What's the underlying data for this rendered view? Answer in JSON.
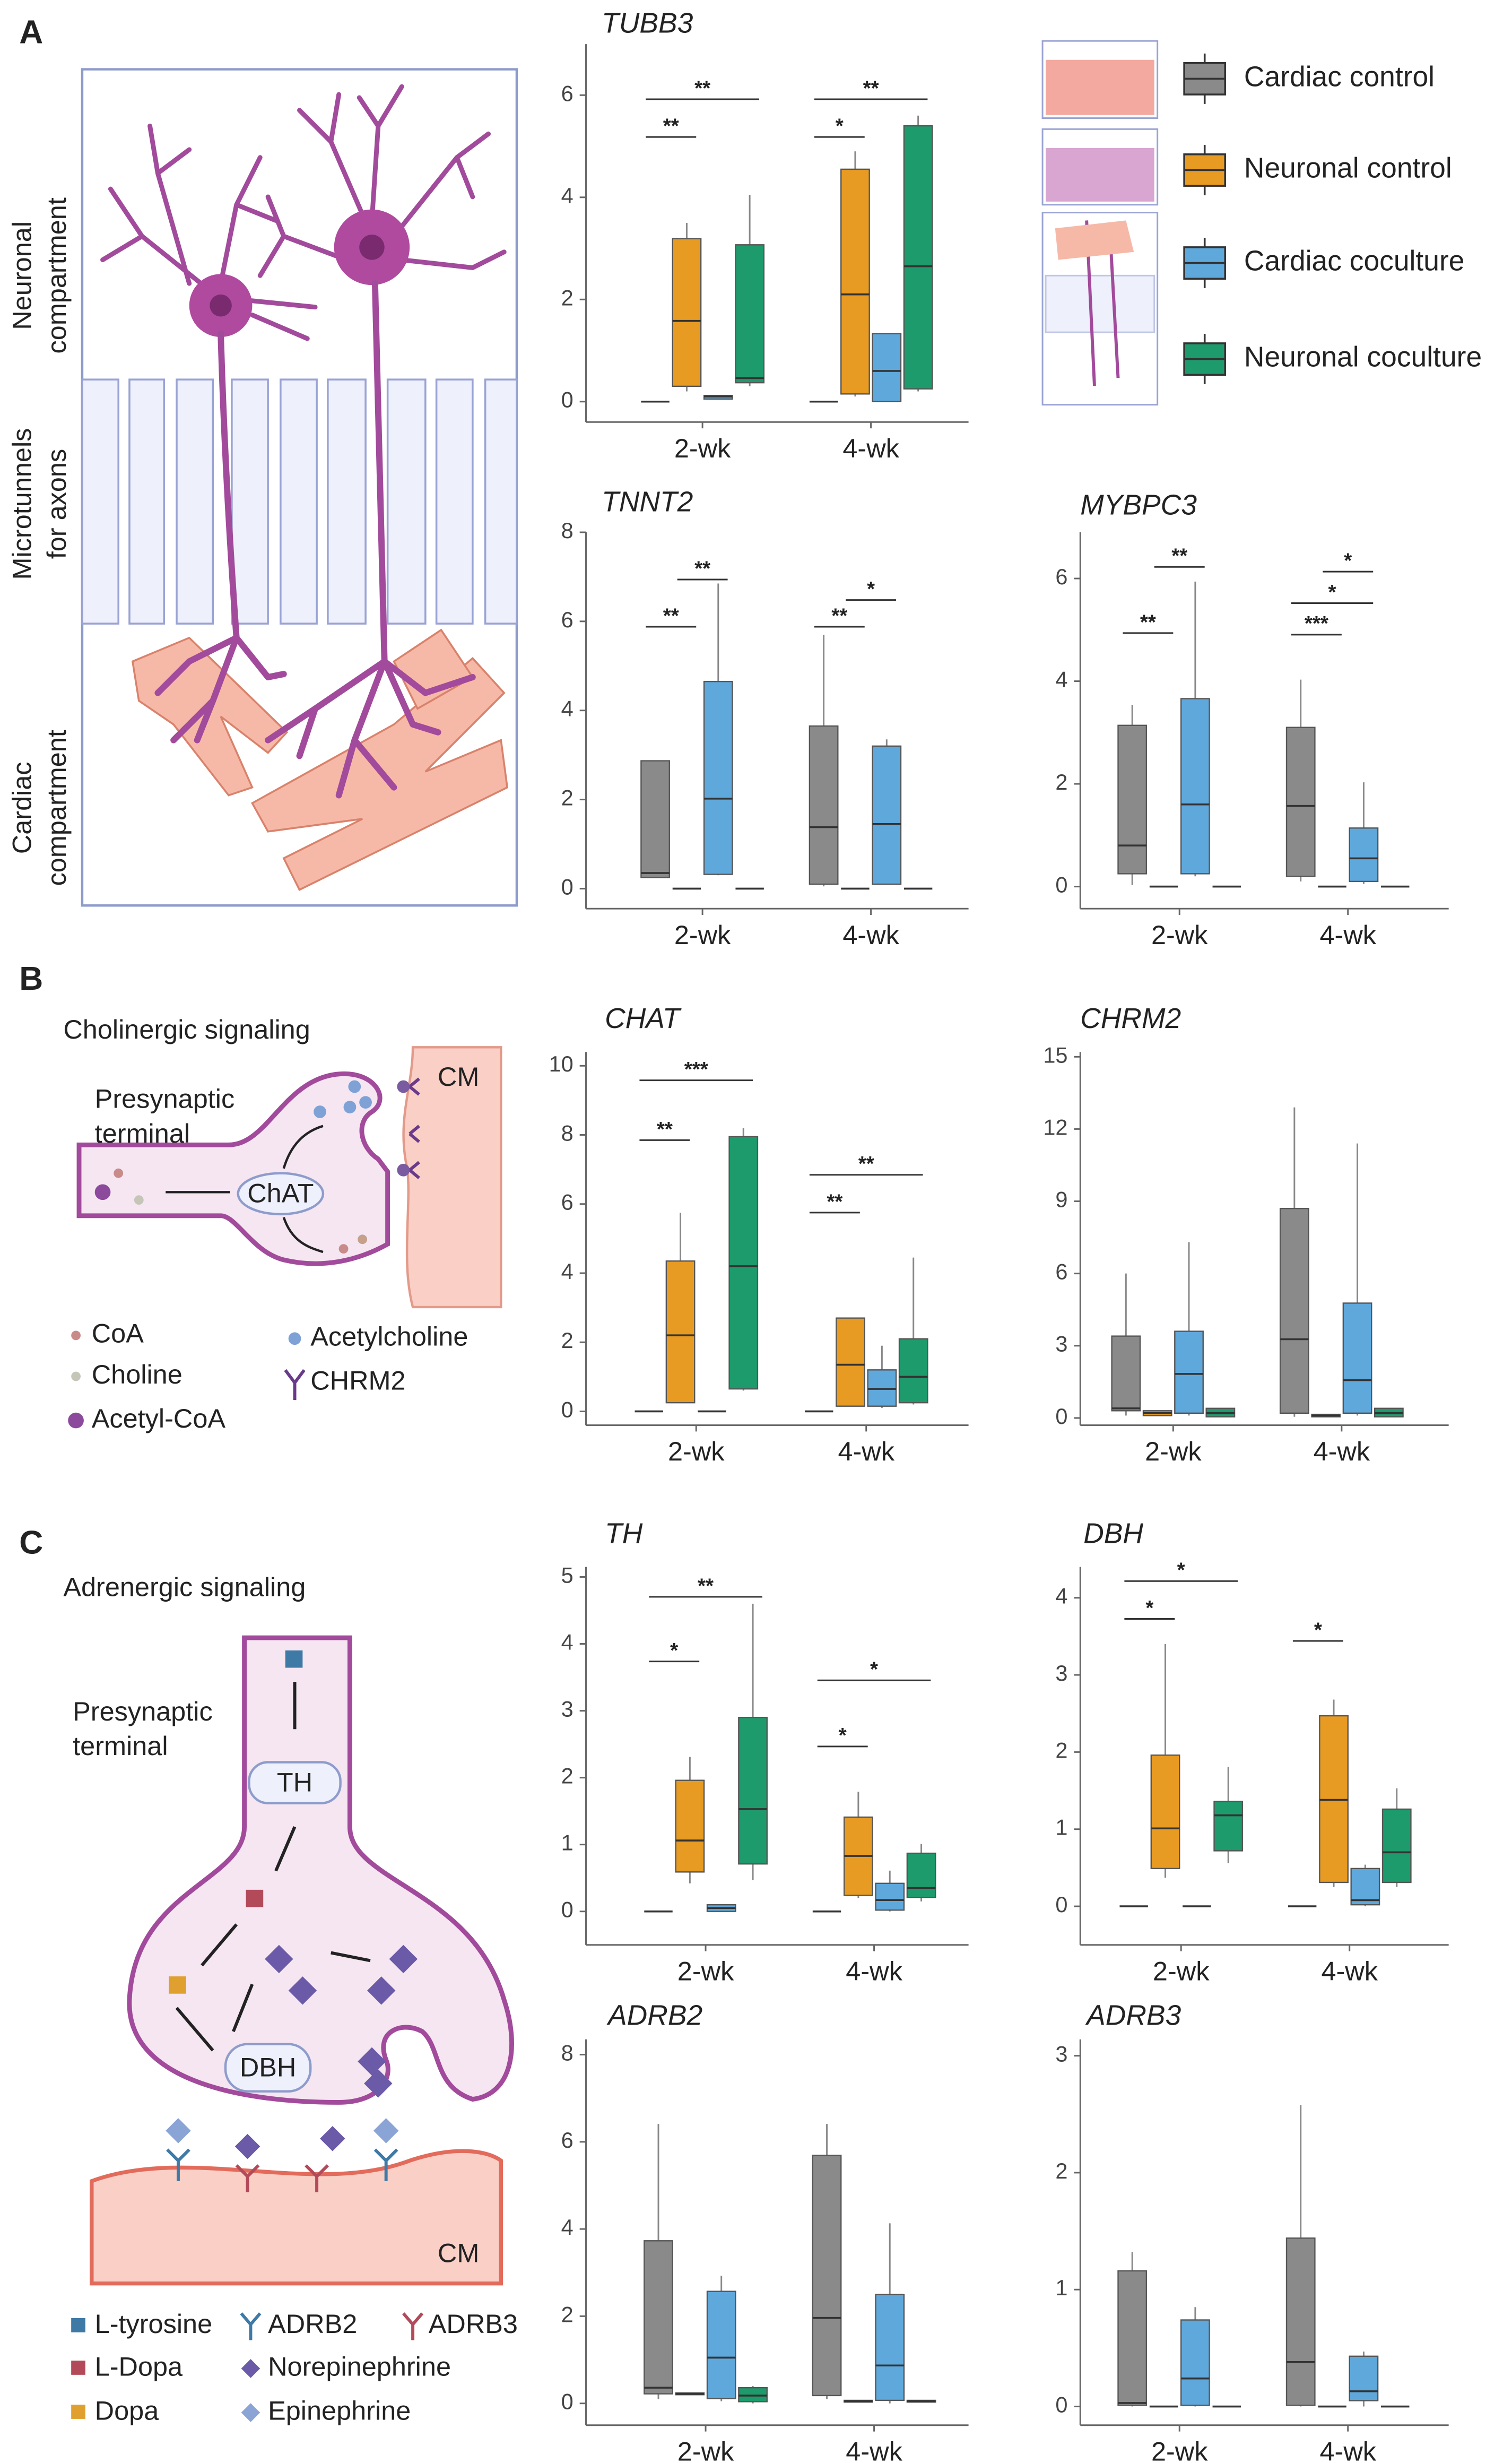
{
  "panel_labels": [
    "A",
    "B",
    "C"
  ],
  "diagram_A": {
    "labels": [
      [
        "Neuronal",
        "compartment"
      ],
      [
        "Microtunnels",
        "for axons"
      ],
      [
        "Cardiac",
        "compartment"
      ]
    ]
  },
  "diagram_B": {
    "title": "Cholinergic signaling",
    "terminal": [
      "Presynaptic",
      "terminal"
    ],
    "enzyme": "ChAT",
    "target": "CM",
    "legend": [
      "CoA",
      "Choline",
      "Acetyl-CoA",
      "Acetylcholine",
      "CHRM2"
    ]
  },
  "diagram_C": {
    "title": "Adrenergic signaling",
    "terminal": [
      "Presynaptic",
      "terminal"
    ],
    "enzymes": [
      "TH",
      "DBH"
    ],
    "target": "CM",
    "legend": [
      "L-tyrosine",
      "L-Dopa",
      "Dopa",
      "ADRB2",
      "ADRB3",
      "Norepinephrine",
      "Epinephrine"
    ]
  },
  "chart_data": [
    {
      "type": "box",
      "title": "TUBB3",
      "categories": [
        "2-wk",
        "4-wk"
      ],
      "ylim": [
        -0.4,
        7
      ],
      "yticks": [
        0,
        2,
        4,
        6
      ],
      "series": [
        {
          "name": "Cardiac control",
          "color": "#8a8a8a",
          "values": [
            {
              "min": 0,
              "q1": 0,
              "median": 0,
              "q3": 0,
              "max": 0
            },
            {
              "min": 0,
              "q1": 0,
              "median": 0,
              "q3": 0,
              "max": 0
            }
          ]
        },
        {
          "name": "Neuronal control",
          "color": "#e89b22",
          "values": [
            {
              "min": 0.2,
              "q1": 0.3,
              "median": 1.58,
              "q3": 3.19,
              "max": 3.5
            },
            {
              "min": 0.1,
              "q1": 0.15,
              "median": 2.1,
              "q3": 4.55,
              "max": 4.9
            }
          ]
        },
        {
          "name": "Cardiac coculture",
          "color": "#5fa8dc",
          "values": [
            {
              "min": 0.05,
              "q1": 0.05,
              "median": 0.1,
              "q3": 0.12,
              "max": 0.12
            },
            {
              "min": 0,
              "q1": 0,
              "median": 0.6,
              "q3": 1.33,
              "max": 1.33
            }
          ]
        },
        {
          "name": "Neuronal coculture",
          "color": "#1e9b6c",
          "values": [
            {
              "min": 0.3,
              "q1": 0.37,
              "median": 0.46,
              "q3": 3.07,
              "max": 4.05
            },
            {
              "min": 0.2,
              "q1": 0.25,
              "median": 2.65,
              "q3": 5.4,
              "max": 5.6
            }
          ]
        }
      ],
      "annotations": [
        "**",
        "**",
        "*",
        "**"
      ]
    },
    {
      "type": "box",
      "title": "TNNT2",
      "categories": [
        "2-wk",
        "4-wk"
      ],
      "ylim": [
        -0.45,
        8
      ],
      "yticks": [
        0,
        2,
        4,
        6,
        8
      ],
      "series": [
        {
          "color": "#8a8a8a",
          "values": [
            {
              "min": 0.25,
              "q1": 0.25,
              "median": 0.35,
              "q3": 2.87,
              "max": 2.87
            },
            {
              "min": 0.05,
              "q1": 0.1,
              "median": 1.38,
              "q3": 3.65,
              "max": 5.7
            }
          ]
        },
        {
          "color": "#e89b22",
          "values": [
            {
              "min": 0,
              "q1": 0,
              "median": 0,
              "q3": 0,
              "max": 0
            },
            {
              "min": 0,
              "q1": 0,
              "median": 0,
              "q3": 0,
              "max": 0
            }
          ]
        },
        {
          "color": "#5fa8dc",
          "values": [
            {
              "min": 0.3,
              "q1": 0.32,
              "median": 2.02,
              "q3": 4.65,
              "max": 6.85
            },
            {
              "min": 0.1,
              "q1": 0.1,
              "median": 1.45,
              "q3": 3.2,
              "max": 3.35
            }
          ]
        },
        {
          "color": "#1e9b6c",
          "values": [
            {
              "min": 0,
              "q1": 0,
              "median": 0,
              "q3": 0,
              "max": 0
            },
            {
              "min": 0,
              "q1": 0,
              "median": 0,
              "q3": 0,
              "max": 0
            }
          ]
        }
      ],
      "annotations": [
        "**",
        "**",
        "**",
        "*"
      ]
    },
    {
      "type": "box",
      "title": "MYBPC3",
      "categories": [
        "2-wk",
        "4-wk"
      ],
      "ylim": [
        -0.43,
        6.9
      ],
      "yticks": [
        0,
        2,
        4,
        6
      ],
      "series": [
        {
          "color": "#8a8a8a",
          "values": [
            {
              "min": 0.03,
              "q1": 0.25,
              "median": 0.8,
              "q3": 3.14,
              "max": 3.54
            },
            {
              "min": 0.1,
              "q1": 0.2,
              "median": 1.57,
              "q3": 3.1,
              "max": 4.03
            }
          ]
        },
        {
          "color": "#e89b22",
          "values": [
            {
              "min": 0,
              "q1": 0,
              "median": 0,
              "q3": 0,
              "max": 0
            },
            {
              "min": 0,
              "q1": 0,
              "median": 0,
              "q3": 0,
              "max": 0
            }
          ]
        },
        {
          "color": "#5fa8dc",
          "values": [
            {
              "min": 0.2,
              "q1": 0.25,
              "median": 1.6,
              "q3": 3.66,
              "max": 5.94
            },
            {
              "min": 0.05,
              "q1": 0.1,
              "median": 0.55,
              "q3": 1.14,
              "max": 2.03
            }
          ]
        },
        {
          "color": "#1e9b6c",
          "values": [
            {
              "min": 0,
              "q1": 0,
              "median": 0,
              "q3": 0,
              "max": 0
            },
            {
              "min": 0,
              "q1": 0,
              "median": 0,
              "q3": 0,
              "max": 0
            }
          ]
        }
      ],
      "annotations": [
        "**",
        "**",
        "***",
        "*",
        "*"
      ]
    },
    {
      "type": "box",
      "title": "CHAT",
      "categories": [
        "2-wk",
        "4-wk"
      ],
      "ylim": [
        -0.4,
        10.4
      ],
      "yticks": [
        0,
        2,
        4,
        6,
        8,
        10
      ],
      "series": [
        {
          "color": "#8a8a8a",
          "values": [
            {
              "min": 0,
              "q1": 0,
              "median": 0,
              "q3": 0,
              "max": 0
            },
            {
              "min": 0,
              "q1": 0,
              "median": 0,
              "q3": 0,
              "max": 0
            }
          ]
        },
        {
          "color": "#e89b22",
          "values": [
            {
              "min": 0.25,
              "q1": 0.25,
              "median": 2.2,
              "q3": 4.35,
              "max": 5.75
            },
            {
              "min": 0.15,
              "q1": 0.15,
              "median": 1.35,
              "q3": 2.7,
              "max": 2.7
            }
          ]
        },
        {
          "color": "#5fa8dc",
          "values": [
            {
              "min": 0,
              "q1": 0,
              "median": 0,
              "q3": 0,
              "max": 0
            },
            {
              "min": 0.1,
              "q1": 0.15,
              "median": 0.65,
              "q3": 1.2,
              "max": 1.9
            }
          ]
        },
        {
          "color": "#1e9b6c",
          "values": [
            {
              "min": 0.6,
              "q1": 0.65,
              "median": 4.2,
              "q3": 7.95,
              "max": 8.2
            },
            {
              "min": 0.2,
              "q1": 0.25,
              "median": 1.0,
              "q3": 2.1,
              "max": 4.45
            }
          ]
        }
      ],
      "annotations": [
        "**",
        "***",
        "**",
        "**"
      ]
    },
    {
      "type": "box",
      "title": "CHRM2",
      "categories": [
        "2-wk",
        "4-wk"
      ],
      "ylim": [
        -0.3,
        15.2
      ],
      "yticks": [
        0,
        3,
        6,
        9,
        12,
        15
      ],
      "series": [
        {
          "color": "#8a8a8a",
          "values": [
            {
              "min": 0.1,
              "q1": 0.3,
              "median": 0.4,
              "q3": 3.4,
              "max": 6.0
            },
            {
              "min": 0.05,
              "q1": 0.2,
              "median": 3.27,
              "q3": 8.7,
              "max": 12.9
            }
          ]
        },
        {
          "color": "#e89b22",
          "values": [
            {
              "min": 0.1,
              "q1": 0.1,
              "median": 0.2,
              "q3": 0.3,
              "max": 0.3
            },
            {
              "min": 0.05,
              "q1": 0.05,
              "median": 0.1,
              "q3": 0.15,
              "max": 0.15
            }
          ]
        },
        {
          "color": "#5fa8dc",
          "values": [
            {
              "min": 0.1,
              "q1": 0.2,
              "median": 1.83,
              "q3": 3.6,
              "max": 7.3
            },
            {
              "min": 0.1,
              "q1": 0.2,
              "median": 1.57,
              "q3": 4.77,
              "max": 11.4
            }
          ]
        },
        {
          "color": "#1e9b6c",
          "values": [
            {
              "min": 0.05,
              "q1": 0.05,
              "median": 0.2,
              "q3": 0.4,
              "max": 0.4
            },
            {
              "min": 0.05,
              "q1": 0.05,
              "median": 0.2,
              "q3": 0.4,
              "max": 0.4
            }
          ]
        }
      ]
    },
    {
      "type": "box",
      "title": "TH",
      "categories": [
        "2-wk",
        "4-wk"
      ],
      "ylim": [
        -0.5,
        5.15
      ],
      "yticks": [
        0,
        1,
        2,
        3,
        4,
        5
      ],
      "series": [
        {
          "color": "#8a8a8a",
          "values": [
            {
              "min": 0,
              "q1": 0,
              "median": 0,
              "q3": 0,
              "max": 0
            },
            {
              "min": 0,
              "q1": 0,
              "median": 0,
              "q3": 0,
              "max": 0
            }
          ]
        },
        {
          "color": "#e89b22",
          "values": [
            {
              "min": 0.42,
              "q1": 0.59,
              "median": 1.06,
              "q3": 1.96,
              "max": 2.31
            },
            {
              "min": 0.2,
              "q1": 0.24,
              "median": 0.83,
              "q3": 1.41,
              "max": 1.79
            }
          ]
        },
        {
          "color": "#5fa8dc",
          "values": [
            {
              "min": 0,
              "q1": 0,
              "median": 0.05,
              "q3": 0.1,
              "max": 0.1
            },
            {
              "min": 0,
              "q1": 0.02,
              "median": 0.17,
              "q3": 0.42,
              "max": 0.61
            }
          ]
        },
        {
          "color": "#1e9b6c",
          "values": [
            {
              "min": 0.47,
              "q1": 0.71,
              "median": 1.53,
              "q3": 2.9,
              "max": 4.6
            },
            {
              "min": 0.15,
              "q1": 0.21,
              "median": 0.35,
              "q3": 0.87,
              "max": 1.01
            }
          ]
        }
      ],
      "annotations": [
        "*",
        "**",
        "*",
        "*"
      ]
    },
    {
      "type": "box",
      "title": "DBH",
      "categories": [
        "2-wk",
        "4-wk"
      ],
      "ylim": [
        -0.5,
        4.4
      ],
      "yticks": [
        0,
        1,
        2,
        3,
        4
      ],
      "series": [
        {
          "color": "#8a8a8a",
          "values": [
            {
              "min": 0,
              "q1": 0,
              "median": 0,
              "q3": 0,
              "max": 0
            },
            {
              "min": 0,
              "q1": 0,
              "median": 0,
              "q3": 0,
              "max": 0
            }
          ]
        },
        {
          "color": "#e89b22",
          "values": [
            {
              "min": 0.37,
              "q1": 0.49,
              "median": 1.01,
              "q3": 1.96,
              "max": 3.4
            },
            {
              "min": 0.25,
              "q1": 0.31,
              "median": 1.38,
              "q3": 2.47,
              "max": 2.68
            }
          ]
        },
        {
          "color": "#5fa8dc",
          "values": [
            {
              "min": 0,
              "q1": 0,
              "median": 0,
              "q3": 0,
              "max": 0
            },
            {
              "min": 0,
              "q1": 0.02,
              "median": 0.08,
              "q3": 0.49,
              "max": 0.54
            }
          ]
        },
        {
          "color": "#1e9b6c",
          "values": [
            {
              "min": 0.56,
              "q1": 0.72,
              "median": 1.18,
              "q3": 1.36,
              "max": 1.81
            },
            {
              "min": 0.25,
              "q1": 0.31,
              "median": 0.7,
              "q3": 1.26,
              "max": 1.53
            }
          ]
        }
      ],
      "annotations": [
        "*",
        "*",
        "*"
      ]
    },
    {
      "type": "box",
      "title": "ADRB2",
      "categories": [
        "2-wk",
        "4-wk"
      ],
      "ylim": [
        -0.5,
        8.35
      ],
      "yticks": [
        0,
        2,
        4,
        6,
        8
      ],
      "series": [
        {
          "color": "#8a8a8a",
          "values": [
            {
              "min": 0.1,
              "q1": 0.22,
              "median": 0.36,
              "q3": 3.73,
              "max": 6.41
            },
            {
              "min": 0.1,
              "q1": 0.18,
              "median": 1.96,
              "q3": 5.69,
              "max": 6.41
            }
          ]
        },
        {
          "color": "#e89b22",
          "values": [
            {
              "min": 0.2,
              "q1": 0.2,
              "median": 0.22,
              "q3": 0.24,
              "max": 0.24
            },
            {
              "min": 0.03,
              "q1": 0.03,
              "median": 0.05,
              "q3": 0.07,
              "max": 0.07
            }
          ]
        },
        {
          "color": "#5fa8dc",
          "values": [
            {
              "min": 0.05,
              "q1": 0.11,
              "median": 1.05,
              "q3": 2.57,
              "max": 2.93
            },
            {
              "min": 0,
              "q1": 0.07,
              "median": 0.87,
              "q3": 2.5,
              "max": 4.13
            }
          ]
        },
        {
          "color": "#1e9b6c",
          "values": [
            {
              "min": 0,
              "q1": 0.04,
              "median": 0.18,
              "q3": 0.36,
              "max": 0.4
            },
            {
              "min": 0.03,
              "q1": 0.03,
              "median": 0.05,
              "q3": 0.07,
              "max": 0.07
            }
          ]
        }
      ]
    },
    {
      "type": "box",
      "title": "ADRB3",
      "categories": [
        "2-wk",
        "4-wk"
      ],
      "ylim": [
        -0.16,
        3.14
      ],
      "yticks": [
        0,
        1,
        2,
        3
      ],
      "series": [
        {
          "color": "#8a8a8a",
          "values": [
            {
              "min": 0,
              "q1": 0.01,
              "median": 0.03,
              "q3": 1.16,
              "max": 1.32
            },
            {
              "min": 0,
              "q1": 0.01,
              "median": 0.38,
              "q3": 1.44,
              "max": 2.58
            }
          ]
        },
        {
          "color": "#e89b22",
          "values": [
            {
              "min": 0,
              "q1": 0,
              "median": 0,
              "q3": 0,
              "max": 0
            },
            {
              "min": 0,
              "q1": 0,
              "median": 0,
              "q3": 0,
              "max": 0
            }
          ]
        },
        {
          "color": "#5fa8dc",
          "values": [
            {
              "min": 0,
              "q1": 0.01,
              "median": 0.24,
              "q3": 0.74,
              "max": 0.85
            },
            {
              "min": 0,
              "q1": 0.05,
              "median": 0.13,
              "q3": 0.43,
              "max": 0.47
            }
          ]
        },
        {
          "color": "#1e9b6c",
          "values": [
            {
              "min": 0,
              "q1": 0,
              "median": 0,
              "q3": 0,
              "max": 0
            },
            {
              "min": 0,
              "q1": 0,
              "median": 0,
              "q3": 0,
              "max": 0
            }
          ]
        }
      ]
    }
  ]
}
